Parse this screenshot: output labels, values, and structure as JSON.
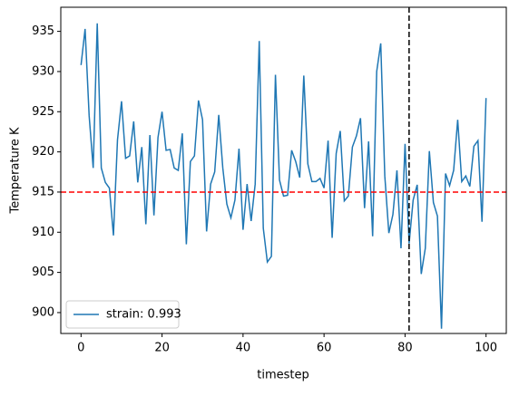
{
  "chart_data": {
    "type": "line",
    "xlabel": "timestep",
    "ylabel": "Temperature K",
    "x": [
      0,
      1,
      2,
      3,
      4,
      5,
      6,
      7,
      8,
      9,
      10,
      11,
      12,
      13,
      14,
      15,
      16,
      17,
      18,
      19,
      20,
      21,
      22,
      23,
      24,
      25,
      26,
      27,
      28,
      29,
      30,
      31,
      32,
      33,
      34,
      35,
      36,
      37,
      38,
      39,
      40,
      41,
      42,
      43,
      44,
      45,
      46,
      47,
      48,
      49,
      50,
      51,
      52,
      53,
      54,
      55,
      56,
      57,
      58,
      59,
      60,
      61,
      62,
      63,
      64,
      65,
      66,
      67,
      68,
      69,
      70,
      71,
      72,
      73,
      74,
      75,
      76,
      77,
      78,
      79,
      80,
      81,
      82,
      83,
      84,
      85,
      86,
      87,
      88,
      89,
      90,
      91,
      92,
      93,
      94,
      95,
      96,
      97,
      98,
      99,
      100
    ],
    "series": [
      {
        "name": "strain: 0.993",
        "color": "#1f77b4",
        "values": [
          930.8,
          935.3,
          924.5,
          918,
          936,
          918,
          916.2,
          915.5,
          909.6,
          921.5,
          926.3,
          919.2,
          919.5,
          923.8,
          916.2,
          920.6,
          911,
          922.1,
          912.1,
          921.8,
          925,
          920.2,
          920.3,
          918,
          917.7,
          922.3,
          908.5,
          918.8,
          919.5,
          926.4,
          924,
          910.1,
          916,
          917.5,
          924.6,
          918,
          913.5,
          911.8,
          914,
          920.4,
          910.3,
          916,
          911.4,
          916,
          933.8,
          910.5,
          906.3,
          907,
          929.6,
          916.5,
          914.5,
          914.6,
          920.2,
          918.8,
          916.8,
          929.5,
          918.5,
          916.3,
          916.3,
          916.7,
          915.5,
          921.4,
          909.3,
          919.8,
          922.6,
          913.9,
          914.5,
          920.6,
          922,
          924.2,
          913,
          921.3,
          909.5,
          930,
          933.5,
          917,
          909.9,
          912.2,
          917.7,
          908,
          921,
          908.6,
          914,
          915.9,
          904.8,
          908,
          920.1,
          913.7,
          912,
          898,
          917.3,
          915.8,
          917.7,
          924,
          916.3,
          917,
          915.7,
          920.7,
          921.4,
          911.3,
          926.7
        ]
      }
    ],
    "hline": {
      "value": 915,
      "color": "#ff0000"
    },
    "vline": {
      "value": 81,
      "color": "#000000"
    },
    "xlim": [
      -5,
      105
    ],
    "xticks": [
      0,
      20,
      40,
      60,
      80,
      100
    ],
    "ylim": [
      897.4,
      938
    ],
    "yticks": [
      900,
      905,
      910,
      915,
      920,
      925,
      930,
      935
    ],
    "legend": "lower left",
    "grid": false
  }
}
